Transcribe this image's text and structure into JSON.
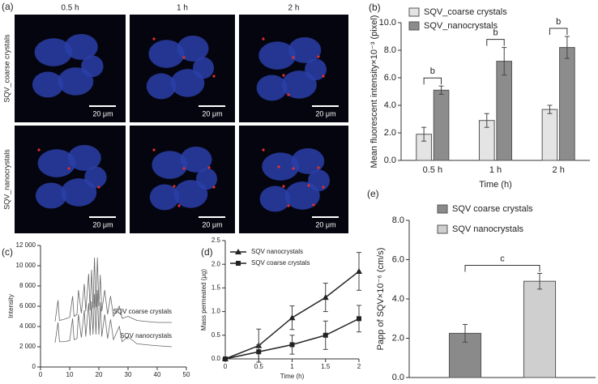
{
  "images_panel": {
    "label": "(a)",
    "columns": [
      "0.5 h",
      "1 h",
      "2 h"
    ],
    "rows": [
      "SQV_coarse crystals",
      "SQV_nanocrystals"
    ],
    "scale_bar": "20 μm"
  },
  "chart_data": [
    {
      "type": "bar",
      "label": "(b)",
      "categories": [
        "0.5 h",
        "1 h",
        "2 h"
      ],
      "series": [
        {
          "name": "SQV_coarse crystals",
          "color": "#e4e4e4",
          "values": [
            1.9,
            2.9,
            3.7
          ],
          "errors": [
            0.5,
            0.5,
            0.3
          ]
        },
        {
          "name": "SQV_nanocrystals",
          "color": "#8c8c8c",
          "values": [
            5.1,
            7.2,
            8.2
          ],
          "errors": [
            0.3,
            1.0,
            0.8
          ]
        }
      ],
      "ylim": [
        0,
        10
      ],
      "yticks": [
        {
          "value": 0,
          "label": "0.0"
        },
        {
          "value": 2,
          "label": "2.0"
        },
        {
          "value": 4,
          "label": "4.0"
        },
        {
          "value": 6,
          "label": "6.0"
        },
        {
          "value": 8,
          "label": "8.0"
        },
        {
          "value": 10,
          "label": "10.0"
        }
      ],
      "y_label": "Mean fluorescent intensity×10⁻³ (pixel)",
      "x_label": "Time (h)",
      "annotations": [
        "b",
        "b",
        "b"
      ],
      "legend": "upper left"
    },
    {
      "type": "line",
      "label": "(c)",
      "x": [
        5,
        6,
        6.5,
        8,
        10,
        11,
        11.5,
        12.5,
        13,
        14,
        15,
        15.5,
        16.5,
        17,
        17.5,
        18,
        18.5,
        19,
        19.5,
        20,
        20.5,
        21,
        22,
        23,
        24,
        25,
        27,
        28,
        30,
        33,
        36,
        40,
        45
      ],
      "series": [
        {
          "name": "SQV coarse crystals",
          "color": "#666666",
          "values": [
            4500,
            6600,
            4600,
            4700,
            4900,
            7000,
            5000,
            5200,
            7600,
            5300,
            8200,
            5500,
            9200,
            5600,
            9600,
            5800,
            10800,
            5900,
            10800,
            6000,
            9100,
            5500,
            7600,
            5200,
            7000,
            5000,
            6000,
            4800,
            5000,
            4600,
            4500,
            4400,
            4400
          ]
        },
        {
          "name": "SQV nanocrystals",
          "color": "#666666",
          "values": [
            2400,
            4400,
            2500,
            2500,
            2600,
            4800,
            2700,
            2800,
            5200,
            2900,
            5600,
            3000,
            6300,
            3100,
            6500,
            3200,
            7200,
            3200,
            7600,
            3200,
            6400,
            3000,
            5200,
            2800,
            4700,
            2700,
            4000,
            2500,
            3000,
            2300,
            2200,
            2100,
            2000
          ]
        }
      ],
      "xlim": [
        0,
        50
      ],
      "xticks": [
        0,
        10,
        20,
        30,
        40,
        50
      ],
      "ylim": [
        0,
        12000
      ],
      "yticks": [
        0,
        {
          "value": 2000,
          "label": "2 000"
        },
        {
          "value": 4000,
          "label": "4 000"
        },
        {
          "value": 6000,
          "label": "6 000"
        },
        {
          "value": 8000,
          "label": "8 000"
        },
        {
          "value": 10000,
          "label": "10 000"
        },
        {
          "value": 12000,
          "label": "12 000"
        }
      ],
      "y_label": "Intensity"
    },
    {
      "type": "line",
      "label": "(d)",
      "x": [
        0,
        0.5,
        1,
        1.5,
        2
      ],
      "series": [
        {
          "name": "SQV nanocrystals",
          "color": "#222222",
          "marker": "triangle",
          "values": [
            0,
            0.28,
            0.87,
            1.3,
            1.85
          ],
          "errors": [
            0,
            0.35,
            0.25,
            0.3,
            0.4
          ]
        },
        {
          "name": "SQV coarse crystals",
          "color": "#222222",
          "marker": "square",
          "values": [
            0,
            0.15,
            0.3,
            0.5,
            0.85
          ],
          "errors": [
            0,
            0.15,
            0.2,
            0.3,
            0.28
          ]
        }
      ],
      "xlim": [
        0,
        2
      ],
      "xticks": [
        0,
        0.5,
        1,
        1.5,
        2
      ],
      "ylim": [
        0,
        2.5
      ],
      "yticks": [
        {
          "value": 0,
          "label": "0.0"
        },
        {
          "value": 0.5,
          "label": "0.5"
        },
        {
          "value": 1,
          "label": "1.0"
        },
        {
          "value": 1.5,
          "label": "1.5"
        },
        {
          "value": 2,
          "label": "2.0"
        },
        {
          "value": 2.5,
          "label": "2.5"
        }
      ],
      "y_label": "Mass permeated (μg)",
      "x_label": "Time (h)",
      "legend": "upper left"
    },
    {
      "type": "bar",
      "label": "(e)",
      "categories": [
        null
      ],
      "series": [
        {
          "name": "SQV coarse crystals",
          "color": "#8a8a8a",
          "values": [
            2.25
          ],
          "errors": [
            0.45
          ]
        },
        {
          "name": "SQV nanocrystals",
          "color": "#cfcfcf",
          "values": [
            4.9
          ],
          "errors": [
            0.4
          ]
        }
      ],
      "ylim": [
        0,
        8
      ],
      "yticks": [
        {
          "value": 0,
          "label": "0.0"
        },
        {
          "value": 2,
          "label": "2.0"
        },
        {
          "value": 4,
          "label": "4.0"
        },
        {
          "value": 6,
          "label": "6.0"
        },
        {
          "value": 8,
          "label": "8.0"
        }
      ],
      "y_label": "Papp of SQV×10⁻⁶ (cm/s)",
      "annotations": [
        "c"
      ],
      "legend": "upper left"
    }
  ]
}
